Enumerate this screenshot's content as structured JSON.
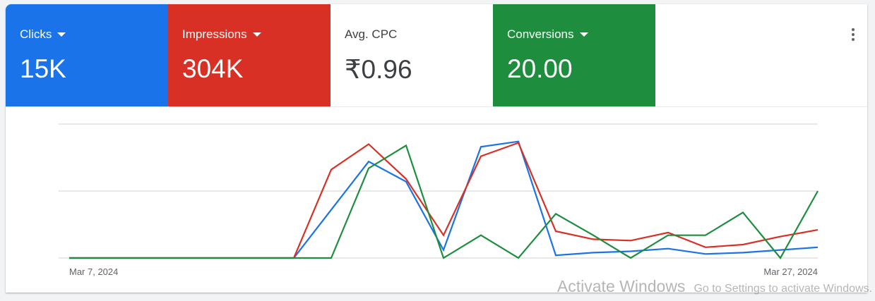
{
  "metrics": [
    {
      "label": "Clicks",
      "value": "15K",
      "color": "#1a73e8",
      "dropdown": true
    },
    {
      "label": "Impressions",
      "value": "304K",
      "color": "#d93025",
      "dropdown": true
    },
    {
      "label": "Avg. CPC",
      "value": "₹0.96",
      "color": "#ffffff",
      "dropdown": false
    },
    {
      "label": "Conversions",
      "value": "20.00",
      "color": "#1e8e3e",
      "dropdown": true
    }
  ],
  "menu_icon": "more-vert-icon",
  "chart_data": {
    "type": "line",
    "x_ticks": [
      "Mar 7, 2024",
      "Mar 27, 2024"
    ],
    "x": [
      "Mar 7",
      "Mar 8",
      "Mar 9",
      "Mar 10",
      "Mar 11",
      "Mar 12",
      "Mar 13",
      "Mar 14",
      "Mar 15",
      "Mar 16",
      "Mar 17",
      "Mar 18",
      "Mar 19",
      "Mar 20",
      "Mar 21",
      "Mar 22",
      "Mar 23",
      "Mar 24",
      "Mar 25",
      "Mar 26",
      "Mar 27"
    ],
    "ylim": [
      0,
      100
    ],
    "grid": true,
    "series": [
      {
        "color": "#1a73e8",
        "values": [
          0,
          0,
          0,
          0,
          0,
          0,
          0,
          36,
          72,
          57,
          6,
          83,
          87,
          2,
          4,
          5,
          7,
          3,
          4,
          6,
          8
        ]
      },
      {
        "color": "#d93025",
        "values": [
          0,
          0,
          0,
          0,
          0,
          0,
          0,
          66,
          85,
          59,
          17,
          76,
          86,
          20,
          14,
          13,
          19,
          8,
          10,
          16,
          21
        ]
      },
      {
        "color": "#1e8e3e",
        "values": [
          0,
          0,
          0,
          0,
          0,
          0,
          0,
          0,
          67,
          84,
          0,
          17,
          0,
          33,
          17,
          0,
          17,
          17,
          34,
          0,
          50
        ]
      }
    ]
  },
  "watermark": {
    "line1": "Activate Windows",
    "line2": "Go to Settings to activate Windows."
  }
}
